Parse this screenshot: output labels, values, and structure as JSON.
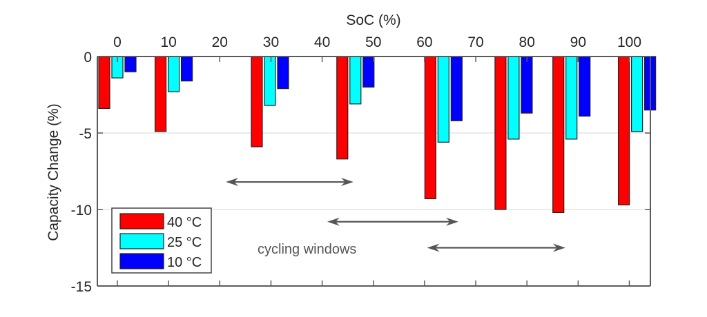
{
  "chart_data": {
    "type": "bar",
    "title": "",
    "xlabel": "SoC (%)",
    "ylabel": "Capacity Change (%)",
    "xlim": [
      -4,
      104
    ],
    "ylim": [
      -15,
      0
    ],
    "x_ticks": [
      0,
      10,
      20,
      30,
      40,
      50,
      60,
      70,
      80,
      90,
      100
    ],
    "x_tick_labels": [
      "0",
      "10",
      "20",
      "30",
      "40",
      "50",
      "60",
      "70",
      "80",
      "90",
      "100"
    ],
    "y_ticks": [
      0,
      -5,
      -10,
      -15
    ],
    "y_tick_labels": [
      "0",
      "-5",
      "-10",
      "-15"
    ],
    "x_axis_position": "top",
    "grid": "horizontal",
    "group_positions": [
      0,
      11,
      29.8,
      46.5,
      63.7,
      77.4,
      88.7,
      101.5
    ],
    "series": [
      {
        "name": "40 °C",
        "color": "#ff0000",
        "values": [
          -3.4,
          -4.9,
          -5.9,
          -6.7,
          -9.3,
          -10.0,
          -10.2,
          -9.7
        ]
      },
      {
        "name": "25 °C",
        "color": "#00ffff",
        "values": [
          -1.4,
          -2.3,
          -3.2,
          -3.1,
          -5.6,
          -5.4,
          -5.4,
          -4.9
        ]
      },
      {
        "name": "10 °C",
        "color": "#0000ff",
        "values": [
          -1.0,
          -1.6,
          -2.1,
          -2.0,
          -4.2,
          -3.7,
          -3.9,
          -3.5
        ]
      }
    ],
    "legend": {
      "position": "bottom-left",
      "entries": [
        "40 °C",
        "25 °C",
        "10 °C"
      ]
    },
    "annotations": {
      "text": "cycling windows",
      "arrows": [
        {
          "from": 21.2,
          "to": 46.1,
          "y": -8.2
        },
        {
          "from": 41,
          "to": 66.6,
          "y": -10.8
        },
        {
          "from": 60.5,
          "to": 87.5,
          "y": -12.5
        }
      ]
    }
  }
}
